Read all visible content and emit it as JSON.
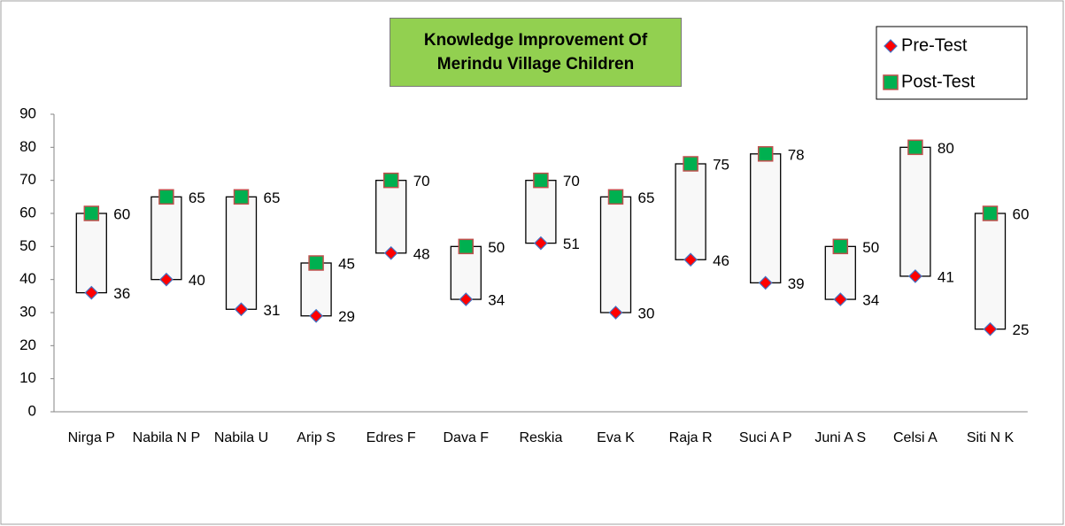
{
  "chart_data": {
    "type": "highlow",
    "title": "Knowledge Improvement Of Merindu Village Children",
    "categories": [
      "Nirga P",
      "Nabila N P",
      "Nabila U",
      "Arip S",
      "Edres F",
      "Dava F",
      "Reskia",
      "Eva K",
      "Raja R",
      "Suci A P",
      "Juni A S",
      "Celsi A",
      "Siti N K"
    ],
    "series": [
      {
        "name": "Pre-Test",
        "color": "#ff0000",
        "values": [
          36,
          40,
          31,
          29,
          48,
          34,
          51,
          30,
          46,
          39,
          34,
          41,
          25
        ]
      },
      {
        "name": "Post-Test",
        "color": "#00b050",
        "values": [
          60,
          65,
          65,
          45,
          70,
          50,
          70,
          65,
          75,
          78,
          50,
          80,
          60
        ]
      }
    ],
    "ylim": [
      0,
      90
    ],
    "yticks": [
      0,
      10,
      20,
      30,
      40,
      50,
      60,
      70,
      80,
      90
    ],
    "grid": false,
    "legend": "top-right"
  }
}
